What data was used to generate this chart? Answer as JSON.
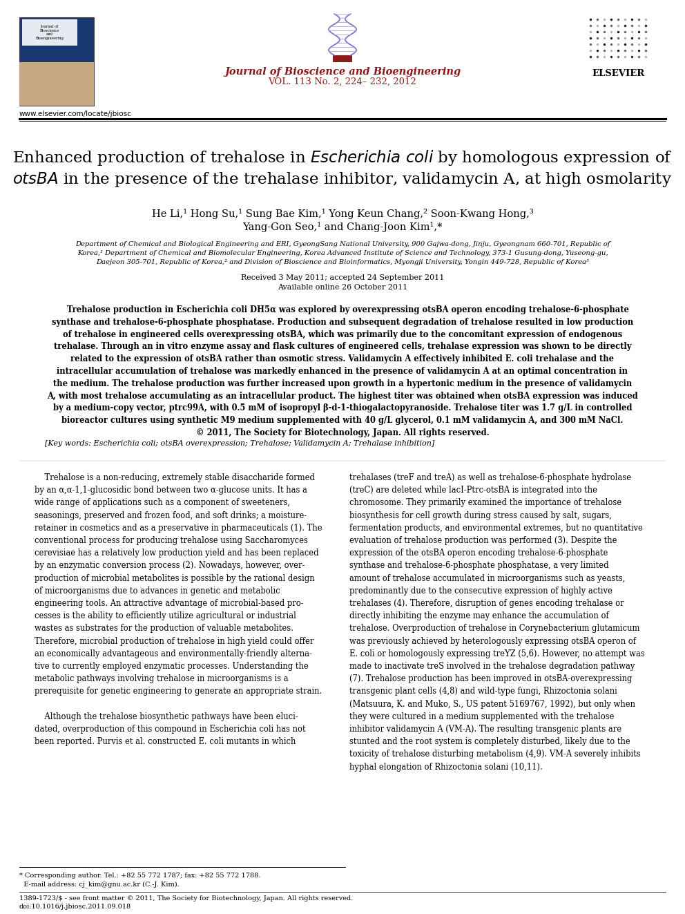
{
  "journal_name": "Journal of Bioscience and Bioengineering",
  "journal_vol": "VOL. 113 No. 2, 224– 232, 2012",
  "website": "www.elsevier.com/locate/jbiosc",
  "journal_color": "#8B1A1A",
  "background_color": "#ffffff",
  "title_line1": "Enhanced production of trehalose in ",
  "title_italic1": "Escherichia coli",
  "title_line1b": " by homologous expression of",
  "title_line2_italic": "otsBA",
  "title_line2b": " in the presence of the trehalase inhibitor, validamycin A, at high osmolarity",
  "authors_line1": "He Li,¹ Hong Su,¹ Sung Bae Kim,¹ Yong Keun Chang,² Soon-Kwang Hong,³",
  "authors_line2": "Yang-Gon Seo,¹ and Chang-Joon Kim¹,*",
  "affil1": "Department of Chemical and Biological Engineering and ERI, GyeongSang National University, 900 Gajwa-dong, Jinju, Gyeongnam 660-701, Republic of",
  "affil2": "Korea,¹ Department of Chemical and Biomolecular Engineering, Korea Advanced Institute of Science and Technology, 373-1 Gusung-dong, Yuseong-gu,",
  "affil3": "Daejeon 305-701, Republic of Korea,² and Division of Bioscience and Bioinformatics, Myongji University, Yongin 449-728, Republic of Korea³",
  "received": "Received 3 May 2011; accepted 24 September 2011",
  "available": "Available online 26 October 2011",
  "abstract_text": "    Trehalose production in Escherichia coli DH5α was explored by overexpressing otsBA operon encoding trehalose-6-phosphate\nsynthase and trehalose-6-phosphate phosphatase. Production and subsequent degradation of trehalose resulted in low production\nof trehalose in engineered cells overexpressing otsBA, which was primarily due to the concomitant expression of endogenous\ntrehalase. Through an in vitro enzyme assay and flask cultures of engineered cells, trehalase expression was shown to be directly\nrelated to the expression of otsBA rather than osmotic stress. Validamycin A effectively inhibited E. coli trehalase and the\nintracellular accumulation of trehalose was markedly enhanced in the presence of validamycin A at an optimal concentration in\nthe medium. The trehalose production was further increased upon growth in a hypertonic medium in the presence of validamycin\nA, with most trehalose accumulating as an intracellular product. The highest titer was obtained when otsBA expression was induced\nby a medium-copy vector, ptrc99A, with 0.5 mM of isopropyl β-d-1-thiogalactopyranoside. Trehalose titer was 1.7 g/L in controlled\nbioreactor cultures using synthetic M9 medium supplemented with 40 g/L glycerol, 0.1 mM validamycin A, and 300 mM NaCl.\n© 2011, The Society for Biotechnology, Japan. All rights reserved.",
  "keywords": "[Key words: Escherichia coli; otsBA overexpression; Trehalose; Validamycin A; Trehalase inhibition]",
  "col1_line1": "    Trehalose is a non-reducing, extremely stable disaccharide formed",
  "col1": "    Trehalose is a non-reducing, extremely stable disaccharide formed\nby an α,α-1,1-glucosidic bond between two α-glucose units. It has a\nwide range of applications such as a component of sweeteners,\nseasonings, preserved and frozen food, and soft drinks; a moisture-\nretainer in cosmetics and as a preservative in pharmaceuticals (1). The\nconventional process for producing trehalose using Saccharomyces\ncerevisiae has a relatively low production yield and has been replaced\nby an enzymatic conversion process (2). Nowadays, however, over-\nproduction of microbial metabolites is possible by the rational design\nof microorganisms due to advances in genetic and metabolic\nengineering tools. An attractive advantage of microbial-based pro-\ncesses is the ability to efficiently utilize agricultural or industrial\nwastes as substrates for the production of valuable metabolites.\nTherefore, microbial production of trehalose in high yield could offer\nan economically advantageous and environmentally-friendly alterna-\ntive to currently employed enzymatic processes. Understanding the\nmetabolic pathways involving trehalose in microorganisms is a\nprerequisite for genetic engineering to generate an appropriate strain.\n\n    Although the trehalose biosynthetic pathways have been eluci-\ndated, overproduction of this compound in Escherichia coli has not\nbeen reported. Purvis et al. constructed E. coli mutants in which",
  "col2": "trehalases (treF and treA) as well as trehalose-6-phosphate hydrolase\n(treC) are deleted while lacI-Ptrc-otsBA is integrated into the\nchromosome. They primarily examined the importance of trehalose\nbiosynthesis for cell growth during stress caused by salt, sugars,\nfermentation products, and environmental extremes, but no quantitative\nevaluation of trehalose production was performed (3). Despite the\nexpression of the otsBA operon encoding trehalose-6-phosphate\nsynthase and trehalose-6-phosphate phosphatase, a very limited\namount of trehalose accumulated in microorganisms such as yeasts,\npredominantly due to the consecutive expression of highly active\ntrehalases (4). Therefore, disruption of genes encoding trehalase or\ndirectly inhibiting the enzyme may enhance the accumulation of\ntrehalose. Overproduction of trehalose in Corynebacterium glutamicum\nwas previously achieved by heterologously expressing otsBA operon of\nE. coli or homologously expressing treYZ (5,6). However, no attempt was\nmade to inactivate treS involved in the trehalose degradation pathway\n(7). Trehalose production has been improved in otsBA-overexpressing\ntransgenic plant cells (4,8) and wild-type fungi, Rhizoctonia solani\n(Matsuura, K. and Muko, S., US patent 5169767, 1992), but only when\nthey were cultured in a medium supplemented with the trehalose\ninhibitor validamycin A (VM-A). The resulting transgenic plants are\nstunted and the root system is completely disturbed, likely due to the\ntoxicity of trehalose disturbing metabolism (4,9). VM-A severely inhibits\nhyphal elongation of Rhizoctonia solani (10,11).",
  "footnote1": "* Corresponding author. Tel.: +82 55 772 1787; fax: +82 55 772 1788.",
  "footnote2": "  E-mail address: cj_kim@gnu.ac.kr (C.-J. Kim).",
  "footer1": "1389-1723/$ - see front matter © 2011, The Society for Biotechnology, Japan. All rights reserved.",
  "footer2": "doi:10.1016/j.jbiosc.2011.09.018"
}
